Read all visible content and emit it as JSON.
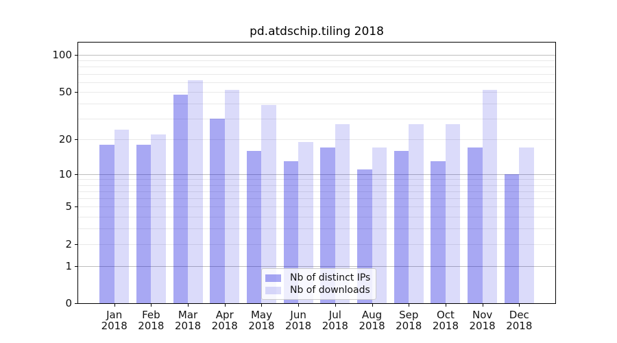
{
  "chart_data": {
    "type": "bar",
    "title": "pd.atdschip.tiling 2018",
    "categories": [
      "Jan",
      "Feb",
      "Mar",
      "Apr",
      "May",
      "Jun",
      "Jul",
      "Aug",
      "Sep",
      "Oct",
      "Nov",
      "Dec"
    ],
    "category_year": "2018",
    "series": [
      {
        "name": "Nb of distinct IPs",
        "color": "#0000dc",
        "alpha": 0.34,
        "values": [
          18,
          18,
          47,
          30,
          16,
          13,
          17,
          11,
          16,
          13,
          17,
          10
        ]
      },
      {
        "name": "Nb of downloads",
        "color": "#0000dc",
        "alpha": 0.14,
        "values": [
          24,
          22,
          62,
          52,
          39,
          19,
          27,
          17,
          27,
          27,
          52,
          17
        ]
      }
    ],
    "yscale": "log1p",
    "ylim": [
      0,
      126
    ],
    "y_ticks": [
      0,
      1,
      2,
      5,
      10,
      20,
      50,
      100
    ],
    "y_gridlines_major": [
      1,
      10,
      100
    ],
    "y_gridlines_minor": [
      2,
      3,
      4,
      5,
      6,
      7,
      8,
      9,
      20,
      30,
      40,
      50,
      60,
      70,
      80,
      90
    ],
    "grid": true,
    "legend_position": "lower center"
  }
}
